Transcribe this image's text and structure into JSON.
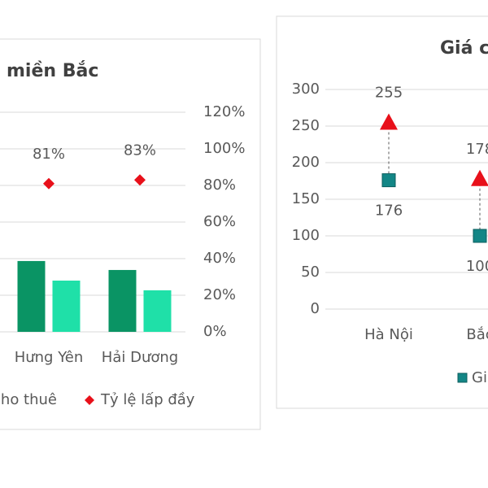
{
  "chart_data": [
    {
      "type": "combo",
      "title": "miền Bắc",
      "categories": [
        "Hưng Yên",
        "Hải Dương"
      ],
      "series": [
        {
          "name": null,
          "color": "#0a9464",
          "values": [
            38.7,
            33.8
          ]
        },
        {
          "name": "ho thuê",
          "color": "#1fe0a8",
          "values": [
            28,
            22.7
          ]
        },
        {
          "name": "Tỷ lệ lấp đầy",
          "color": "#e8101a",
          "axis": "y2",
          "marker": "diamond",
          "values": [
            81,
            83
          ],
          "value_labels": [
            "81%",
            "83%"
          ]
        }
      ],
      "ylim": [
        0,
        120
      ],
      "y2lim": [
        0,
        120
      ],
      "y2ticks": [
        {
          "value": 0,
          "label": "0%"
        },
        {
          "value": 20,
          "label": "20%"
        },
        {
          "value": 40,
          "label": "40%"
        },
        {
          "value": 60,
          "label": "60%"
        },
        {
          "value": 80,
          "label": "80%"
        },
        {
          "value": 100,
          "label": "100%"
        },
        {
          "value": 120,
          "label": "120%"
        }
      ],
      "grid": true
    },
    {
      "type": "dot",
      "title": "Giá c",
      "categories": [
        "Hà Nội",
        "Bắc"
      ],
      "series": [
        {
          "name": "Gi",
          "color": "#138686",
          "marker": "square",
          "values": [
            176,
            100
          ]
        },
        {
          "name": null,
          "color": "#e8101a",
          "marker": "triangle",
          "values": [
            255,
            178
          ]
        }
      ],
      "ylim": [
        0,
        300
      ],
      "yticks": [
        0,
        50,
        100,
        150,
        200,
        250,
        300
      ],
      "grid": true,
      "drop_lines": true
    }
  ]
}
